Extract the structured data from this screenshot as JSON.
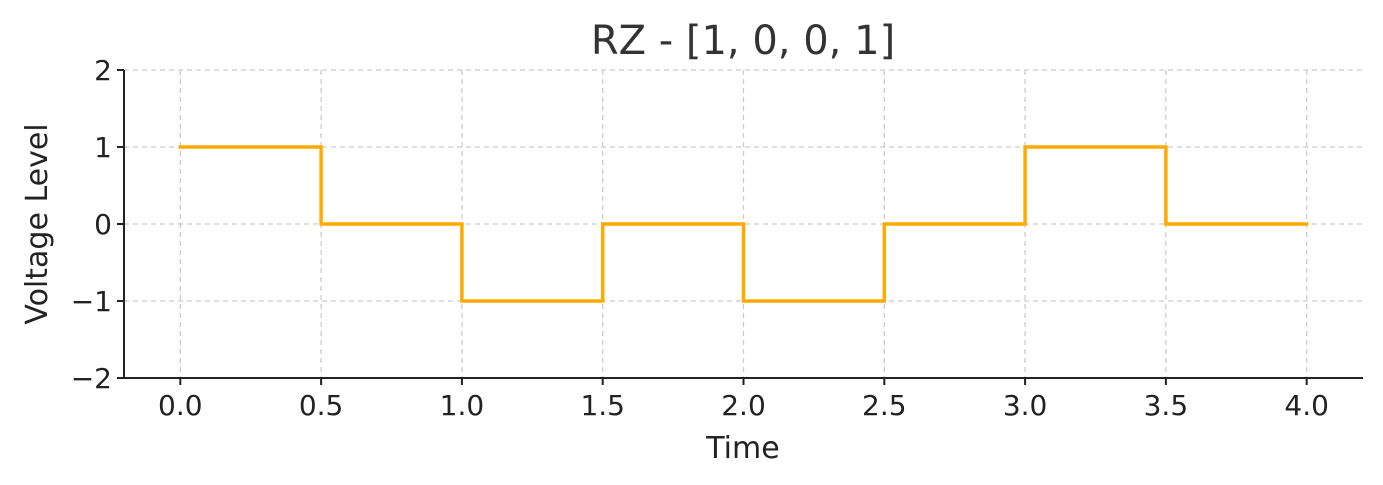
{
  "chart_data": {
    "type": "line",
    "step": "post",
    "title": "RZ - [1, 0, 0, 1]",
    "xlabel": "Time",
    "ylabel": "Voltage Level",
    "xlim": [
      -0.2,
      4.2
    ],
    "ylim": [
      -2,
      2
    ],
    "x_ticks": [
      0.0,
      0.5,
      1.0,
      1.5,
      2.0,
      2.5,
      3.0,
      3.5,
      4.0
    ],
    "x_tick_labels": [
      "0.0",
      "0.5",
      "1.0",
      "1.5",
      "2.0",
      "2.5",
      "3.0",
      "3.5",
      "4.0"
    ],
    "y_ticks": [
      -2,
      -1,
      0,
      1,
      2
    ],
    "y_tick_labels": [
      "−2",
      "−1",
      "0",
      "1",
      "2"
    ],
    "grid": true,
    "series": [
      {
        "color": "#FFAA00",
        "x": [
          0.0,
          0.5,
          1.0,
          1.5,
          2.0,
          2.5,
          3.0,
          3.5,
          4.0
        ],
        "y": [
          1,
          0,
          -1,
          0,
          -1,
          0,
          1,
          0,
          0
        ]
      }
    ]
  }
}
